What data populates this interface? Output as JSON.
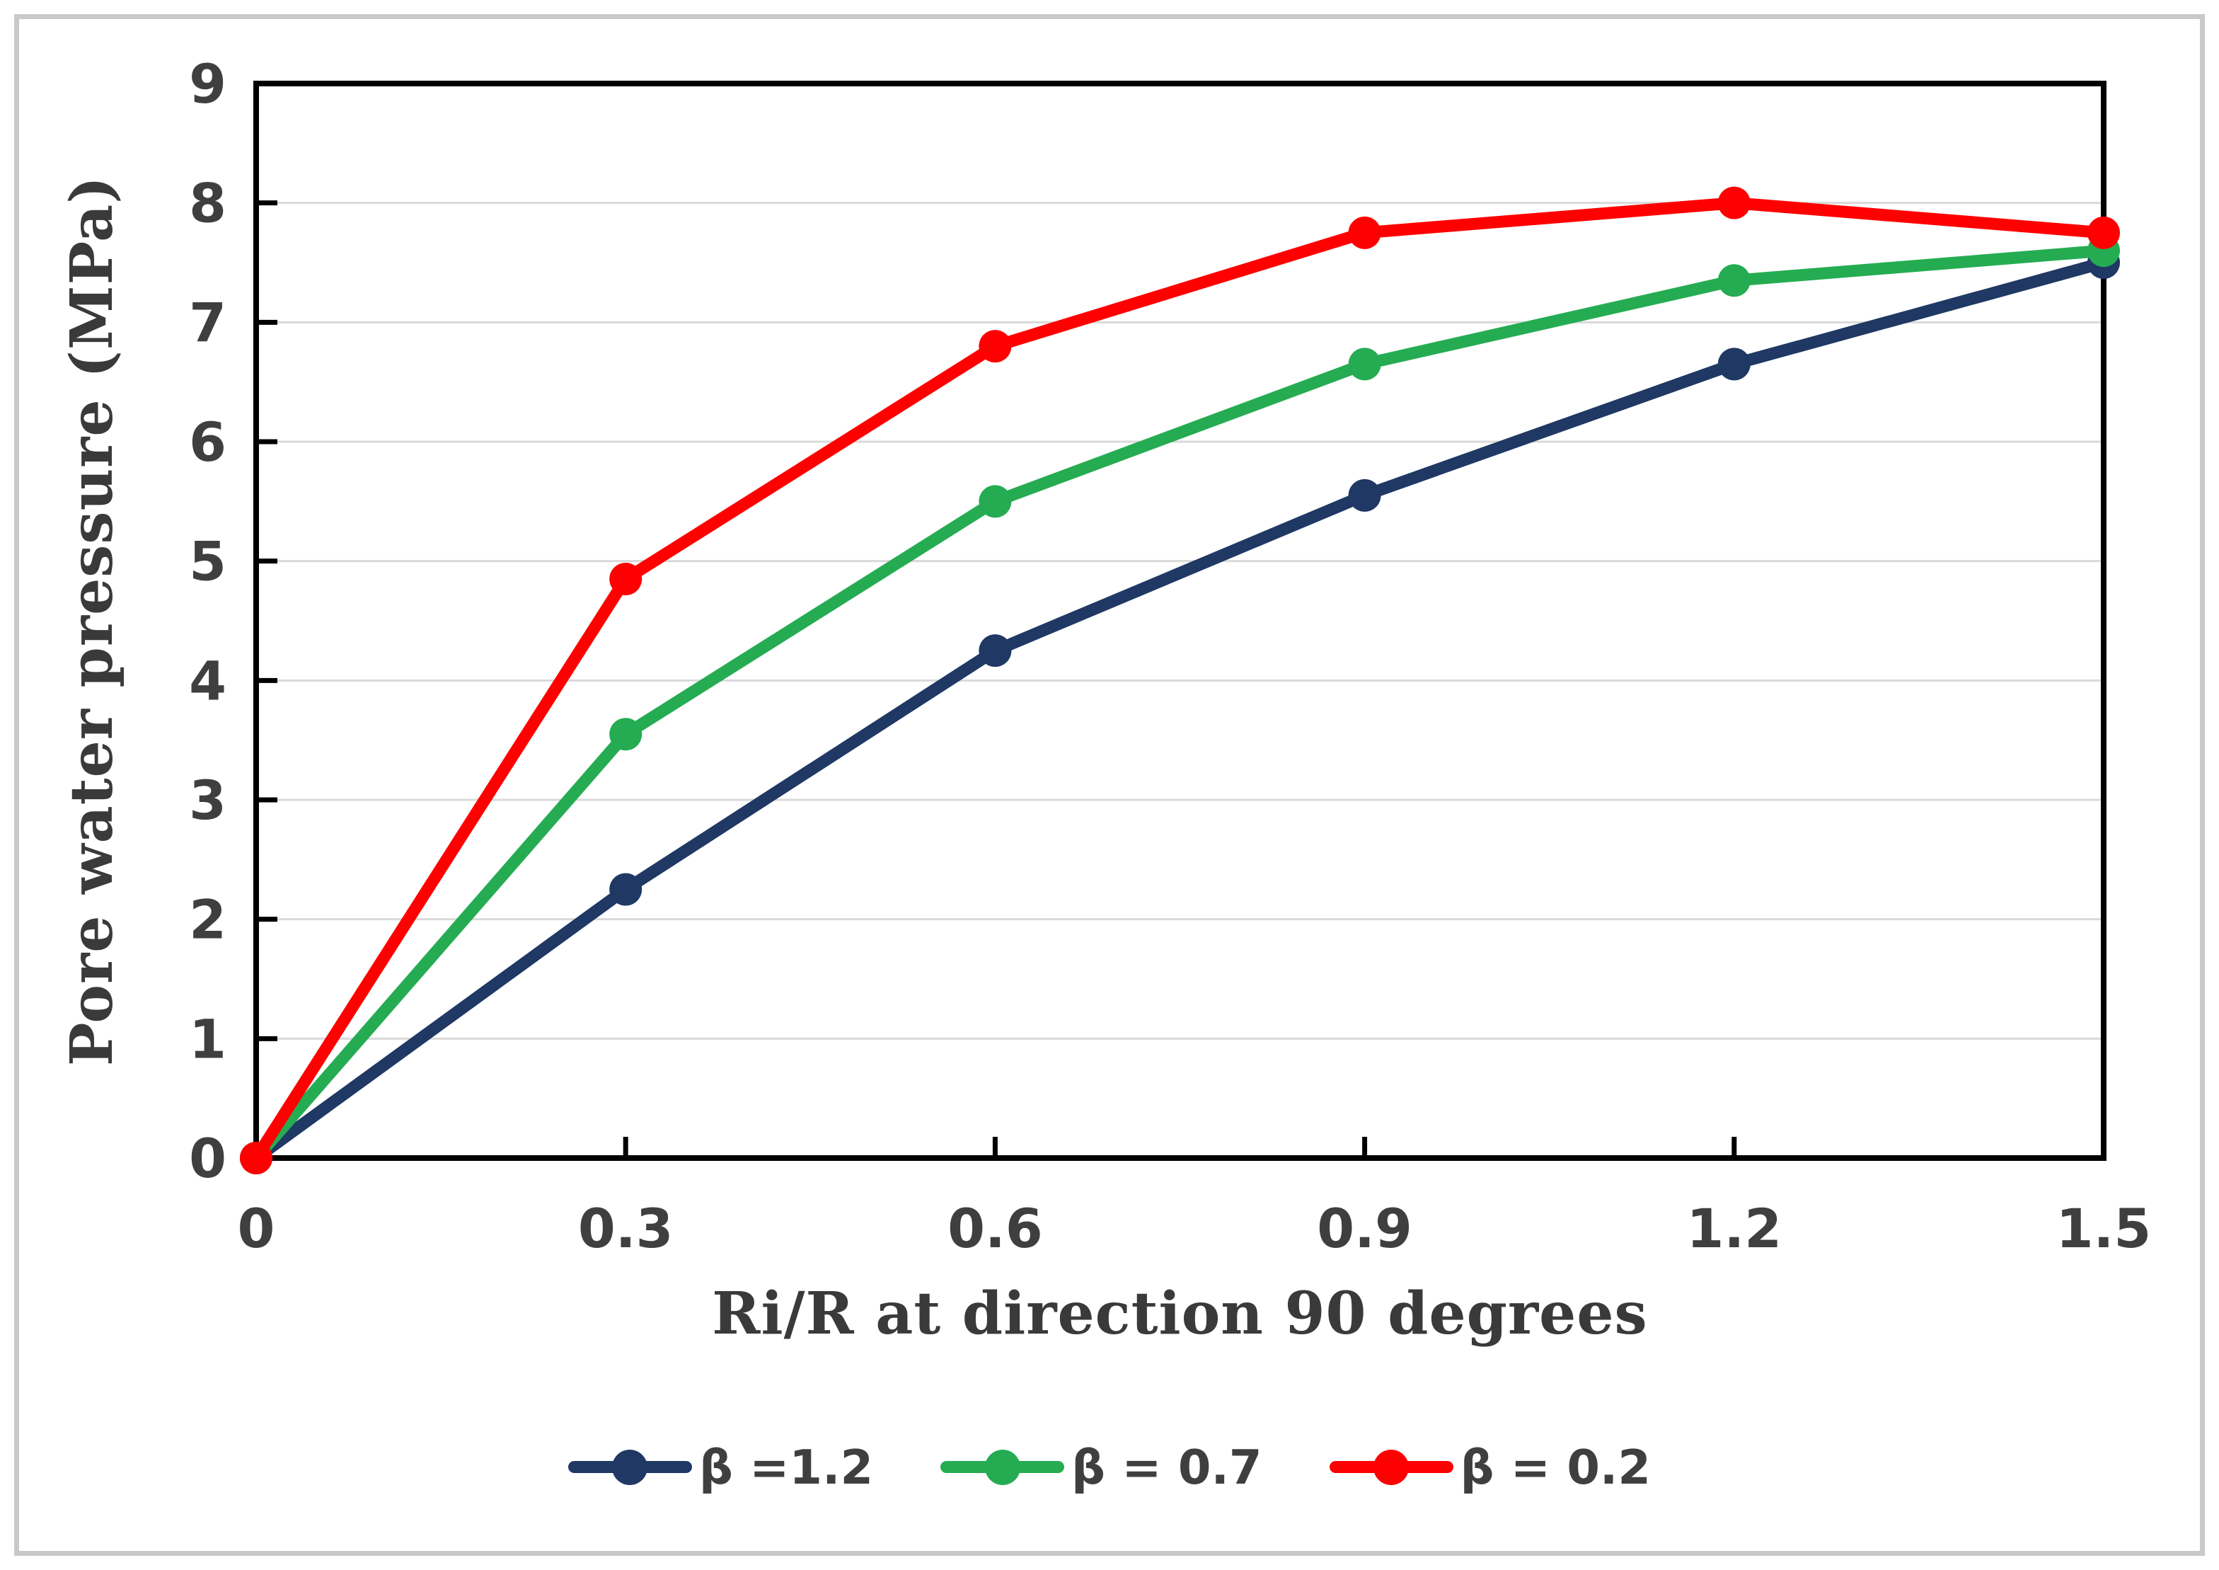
{
  "figure": {
    "background": "#FFFFFF",
    "outer_border_color": "#C9C9C9"
  },
  "chart_data": {
    "type": "line",
    "title": "",
    "xlabel": "Ri/R at direction 90 degrees",
    "ylabel": "Pore water pressure (MPa)",
    "x": [
      0,
      0.3,
      0.6,
      0.9,
      1.2,
      1.5
    ],
    "x_tick_labels": [
      "0",
      "0.3",
      "0.6",
      "0.9",
      "1.2",
      "1.5"
    ],
    "y_ticks": [
      0,
      1,
      2,
      3,
      4,
      5,
      6,
      7,
      8,
      9
    ],
    "y_tick_labels": [
      "0",
      "1",
      "2",
      "3",
      "4",
      "5",
      "6",
      "7",
      "8",
      "9"
    ],
    "xlim": [
      0,
      1.5
    ],
    "ylim": [
      0,
      9
    ],
    "grid": "horizontal-only",
    "gridline_color": "#D9D9D9",
    "axis_frame_color": "#000000",
    "tick_style": "inside",
    "tick_label_color": "#3F3F3F",
    "marker": "circle",
    "legend_position": "bottom",
    "series": [
      {
        "name": "β =1.2",
        "color": "#1F3864",
        "values": [
          0,
          2.25,
          4.25,
          5.55,
          6.65,
          7.5
        ]
      },
      {
        "name": "β = 0.7",
        "color": "#25AC52",
        "values": [
          0,
          3.55,
          5.5,
          6.65,
          7.35,
          7.6
        ]
      },
      {
        "name": "β = 0.2",
        "color": "#FF0000",
        "values": [
          0,
          4.85,
          6.8,
          7.75,
          8.0,
          7.75
        ]
      }
    ]
  }
}
